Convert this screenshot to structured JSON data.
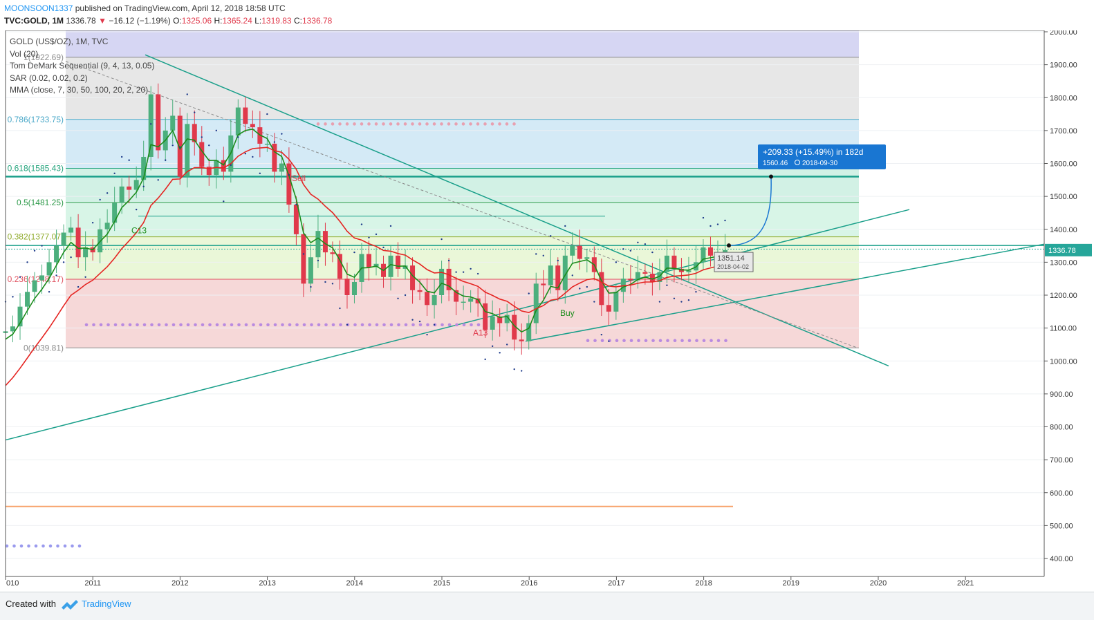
{
  "header": {
    "publisher": "MOONSOON1337",
    "published_text": "published on TradingView.com, April 12, 2018 18:58 UTC",
    "symbol": "TVC:GOLD, 1M",
    "last": "1336.78",
    "change": "−16.12 (−1.19%)",
    "ohlc": [
      {
        "label": "O:",
        "value": "1325.06"
      },
      {
        "label": "H:",
        "value": "1365.24"
      },
      {
        "label": "L:",
        "value": "1319.83"
      },
      {
        "label": "C:",
        "value": "1336.78"
      }
    ]
  },
  "indicators": {
    "title": "GOLD (US$/OZ), 1M, TVC",
    "items": [
      "Vol (20)",
      "Tom DeMark Sequential (9, 4, 13, 0.05)",
      "SAR (0.02, 0.02, 0.2)",
      "MMA (close, 7, 30, 50, 100, 20, 2, 20)"
    ]
  },
  "footer": {
    "created_with": "Created with",
    "brand": "TradingView"
  },
  "colors": {
    "up": "#4caf7d",
    "down": "#e0394b",
    "trendline": "#199f8a",
    "ma_fast": "#1b8c1b",
    "ma_slow": "#e52421",
    "projection": "#1976d2"
  },
  "chart_data": {
    "type": "candlestick",
    "timeframe": "1M",
    "x_ticks": [
      "010",
      "2011",
      "2012",
      "2013",
      "2014",
      "2015",
      "2016",
      "2017",
      "2018",
      "2019",
      "2020",
      "2021"
    ],
    "y_ticks": [
      "2000.00",
      "1900.00",
      "1800.00",
      "1700.00",
      "1600.00",
      "1500.00",
      "1400.00",
      "1300.00",
      "1200.00",
      "1100.00",
      "1000.00",
      "900.00",
      "800.00",
      "700.00",
      "600.00",
      "500.00",
      "400.00"
    ],
    "ylim": [
      380,
      2000
    ],
    "last_price_label": "1336.78",
    "fib_levels": [
      {
        "label": "1(1922.69)",
        "value": 1922.69
      },
      {
        "label": "0.786(1733.75)",
        "value": 1733.75
      },
      {
        "label": "0.618(1585.43)",
        "value": 1585.43
      },
      {
        "label": "0.5(1481.25)",
        "value": 1481.25
      },
      {
        "label": "0.382(1377.07)",
        "value": 1377.07
      },
      {
        "label": "0.236(1248.17)",
        "value": 1248.17
      },
      {
        "label": "0(1039.81)",
        "value": 1039.81
      }
    ],
    "monthly_closes": [
      1090,
      1105,
      1165,
      1210,
      1245,
      1260,
      1300,
      1350,
      1390,
      1405,
      1315,
      1345,
      1330,
      1400,
      1420,
      1480,
      1530,
      1520,
      1550,
      1620,
      1810,
      1640,
      1700,
      1745,
      1560,
      1720,
      1665,
      1590,
      1565,
      1610,
      1575,
      1685,
      1770,
      1720,
      1710,
      1660,
      1660,
      1575,
      1600,
      1475,
      1385,
      1235,
      1315,
      1395,
      1330,
      1325,
      1250,
      1200,
      1240,
      1325,
      1285,
      1295,
      1255,
      1320,
      1280,
      1290,
      1215,
      1210,
      1170,
      1200,
      1280,
      1215,
      1180,
      1180,
      1190,
      1175,
      1095,
      1135,
      1115,
      1140,
      1065,
      1060,
      1115,
      1235,
      1230,
      1290,
      1215,
      1320,
      1350,
      1310,
      1315,
      1270,
      1170,
      1150,
      1210,
      1250,
      1245,
      1270,
      1265,
      1240,
      1270,
      1320,
      1280,
      1270,
      1275,
      1300,
      1345,
      1320,
      1325,
      1336.78
    ],
    "annotations": [
      "C13",
      "A13",
      "Buy",
      "Sell"
    ],
    "projection": {
      "text": "+209.33 (+15.49%) in 182d",
      "price": "1560.46",
      "date": "2018-09-30"
    },
    "crosshair": {
      "price": "1351.14",
      "date": "2018-04-02"
    }
  }
}
